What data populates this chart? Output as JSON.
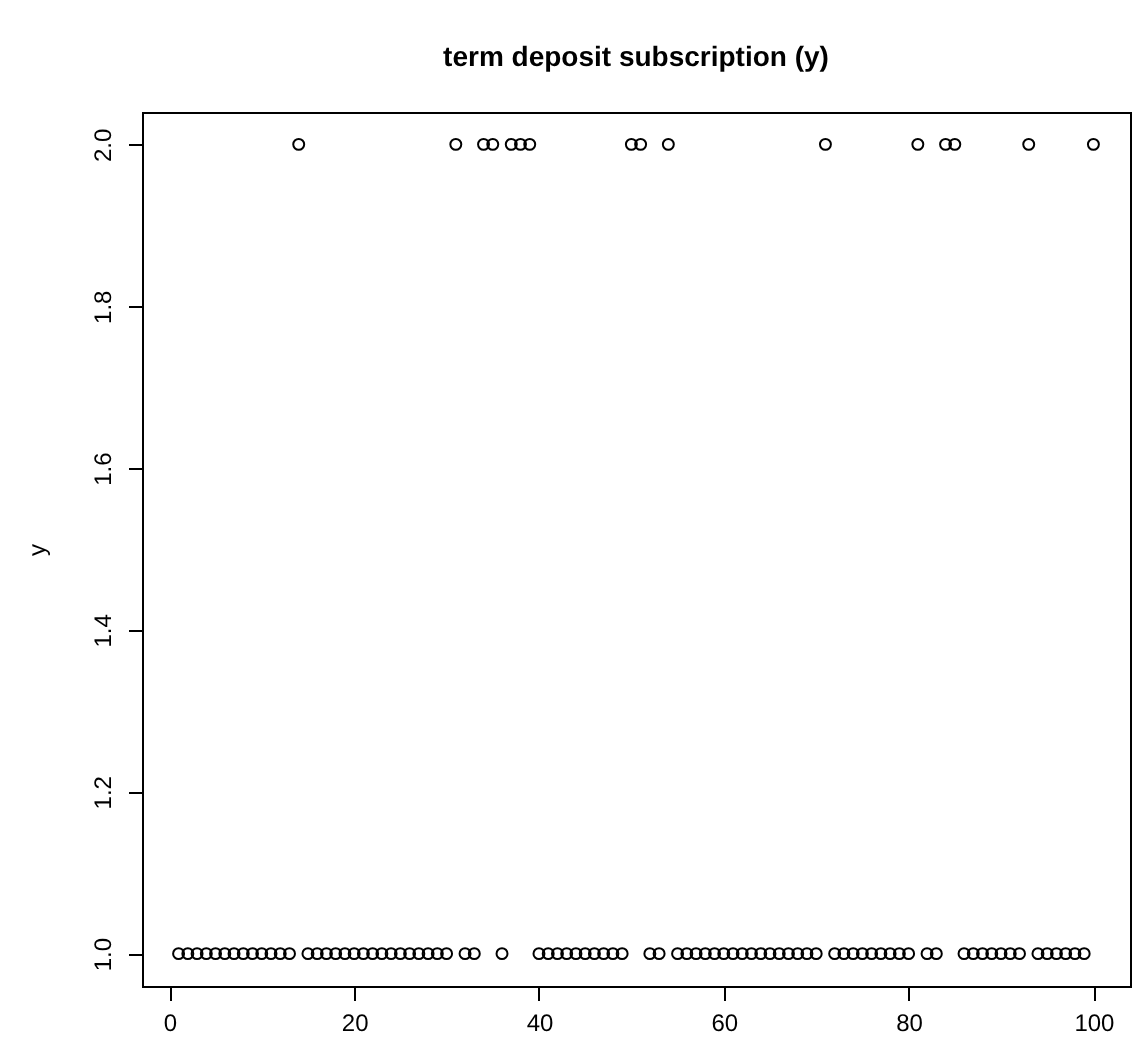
{
  "chart_data": {
    "type": "scatter",
    "title": "term deposit subscription (y)",
    "ylabel": "y",
    "marker": "circle",
    "grid": false,
    "x": [
      1,
      2,
      3,
      4,
      5,
      6,
      7,
      8,
      9,
      10,
      11,
      12,
      13,
      14,
      15,
      16,
      17,
      18,
      19,
      20,
      21,
      22,
      23,
      24,
      25,
      26,
      27,
      28,
      29,
      30,
      31,
      32,
      33,
      34,
      35,
      36,
      37,
      38,
      39,
      40,
      41,
      42,
      43,
      44,
      45,
      46,
      47,
      48,
      49,
      50,
      51,
      52,
      53,
      54,
      55,
      56,
      57,
      58,
      59,
      60,
      61,
      62,
      63,
      64,
      65,
      66,
      67,
      68,
      69,
      70,
      71,
      72,
      73,
      74,
      75,
      76,
      77,
      78,
      79,
      80,
      81,
      82,
      83,
      84,
      85,
      86,
      87,
      88,
      89,
      90,
      91,
      92,
      93,
      94,
      95,
      96,
      97,
      98,
      99,
      100
    ],
    "series": [
      {
        "color": "#000000",
        "values": [
          1,
          1,
          1,
          1,
          1,
          1,
          1,
          1,
          1,
          1,
          1,
          1,
          1,
          2,
          1,
          1,
          1,
          1,
          1,
          1,
          1,
          1,
          1,
          1,
          1,
          1,
          1,
          1,
          1,
          1,
          2,
          1,
          1,
          2,
          2,
          1,
          2,
          2,
          2,
          1,
          1,
          1,
          1,
          1,
          1,
          1,
          1,
          1,
          1,
          2,
          2,
          1,
          1,
          2,
          1,
          1,
          1,
          1,
          1,
          1,
          1,
          1,
          1,
          1,
          1,
          1,
          1,
          1,
          1,
          1,
          2,
          1,
          1,
          1,
          1,
          1,
          1,
          1,
          1,
          1,
          2,
          1,
          1,
          2,
          2,
          1,
          1,
          1,
          1,
          1,
          1,
          1,
          2,
          1,
          1,
          1,
          1,
          1,
          1,
          2
        ]
      }
    ],
    "xlim": [
      -2.96,
      103.96
    ],
    "xticks": [
      0,
      20,
      40,
      60,
      80,
      100
    ],
    "ylim": [
      0.96,
      2.04
    ],
    "yticks": [
      {
        "value": 1,
        "label": "1.0"
      },
      {
        "value": 1.2,
        "label": "1.2"
      },
      {
        "value": 1.4,
        "label": "1.4"
      },
      {
        "value": 1.6,
        "label": "1.6"
      },
      {
        "value": 1.8,
        "label": "1.8"
      },
      {
        "value": 2,
        "label": "2.0"
      }
    ]
  }
}
